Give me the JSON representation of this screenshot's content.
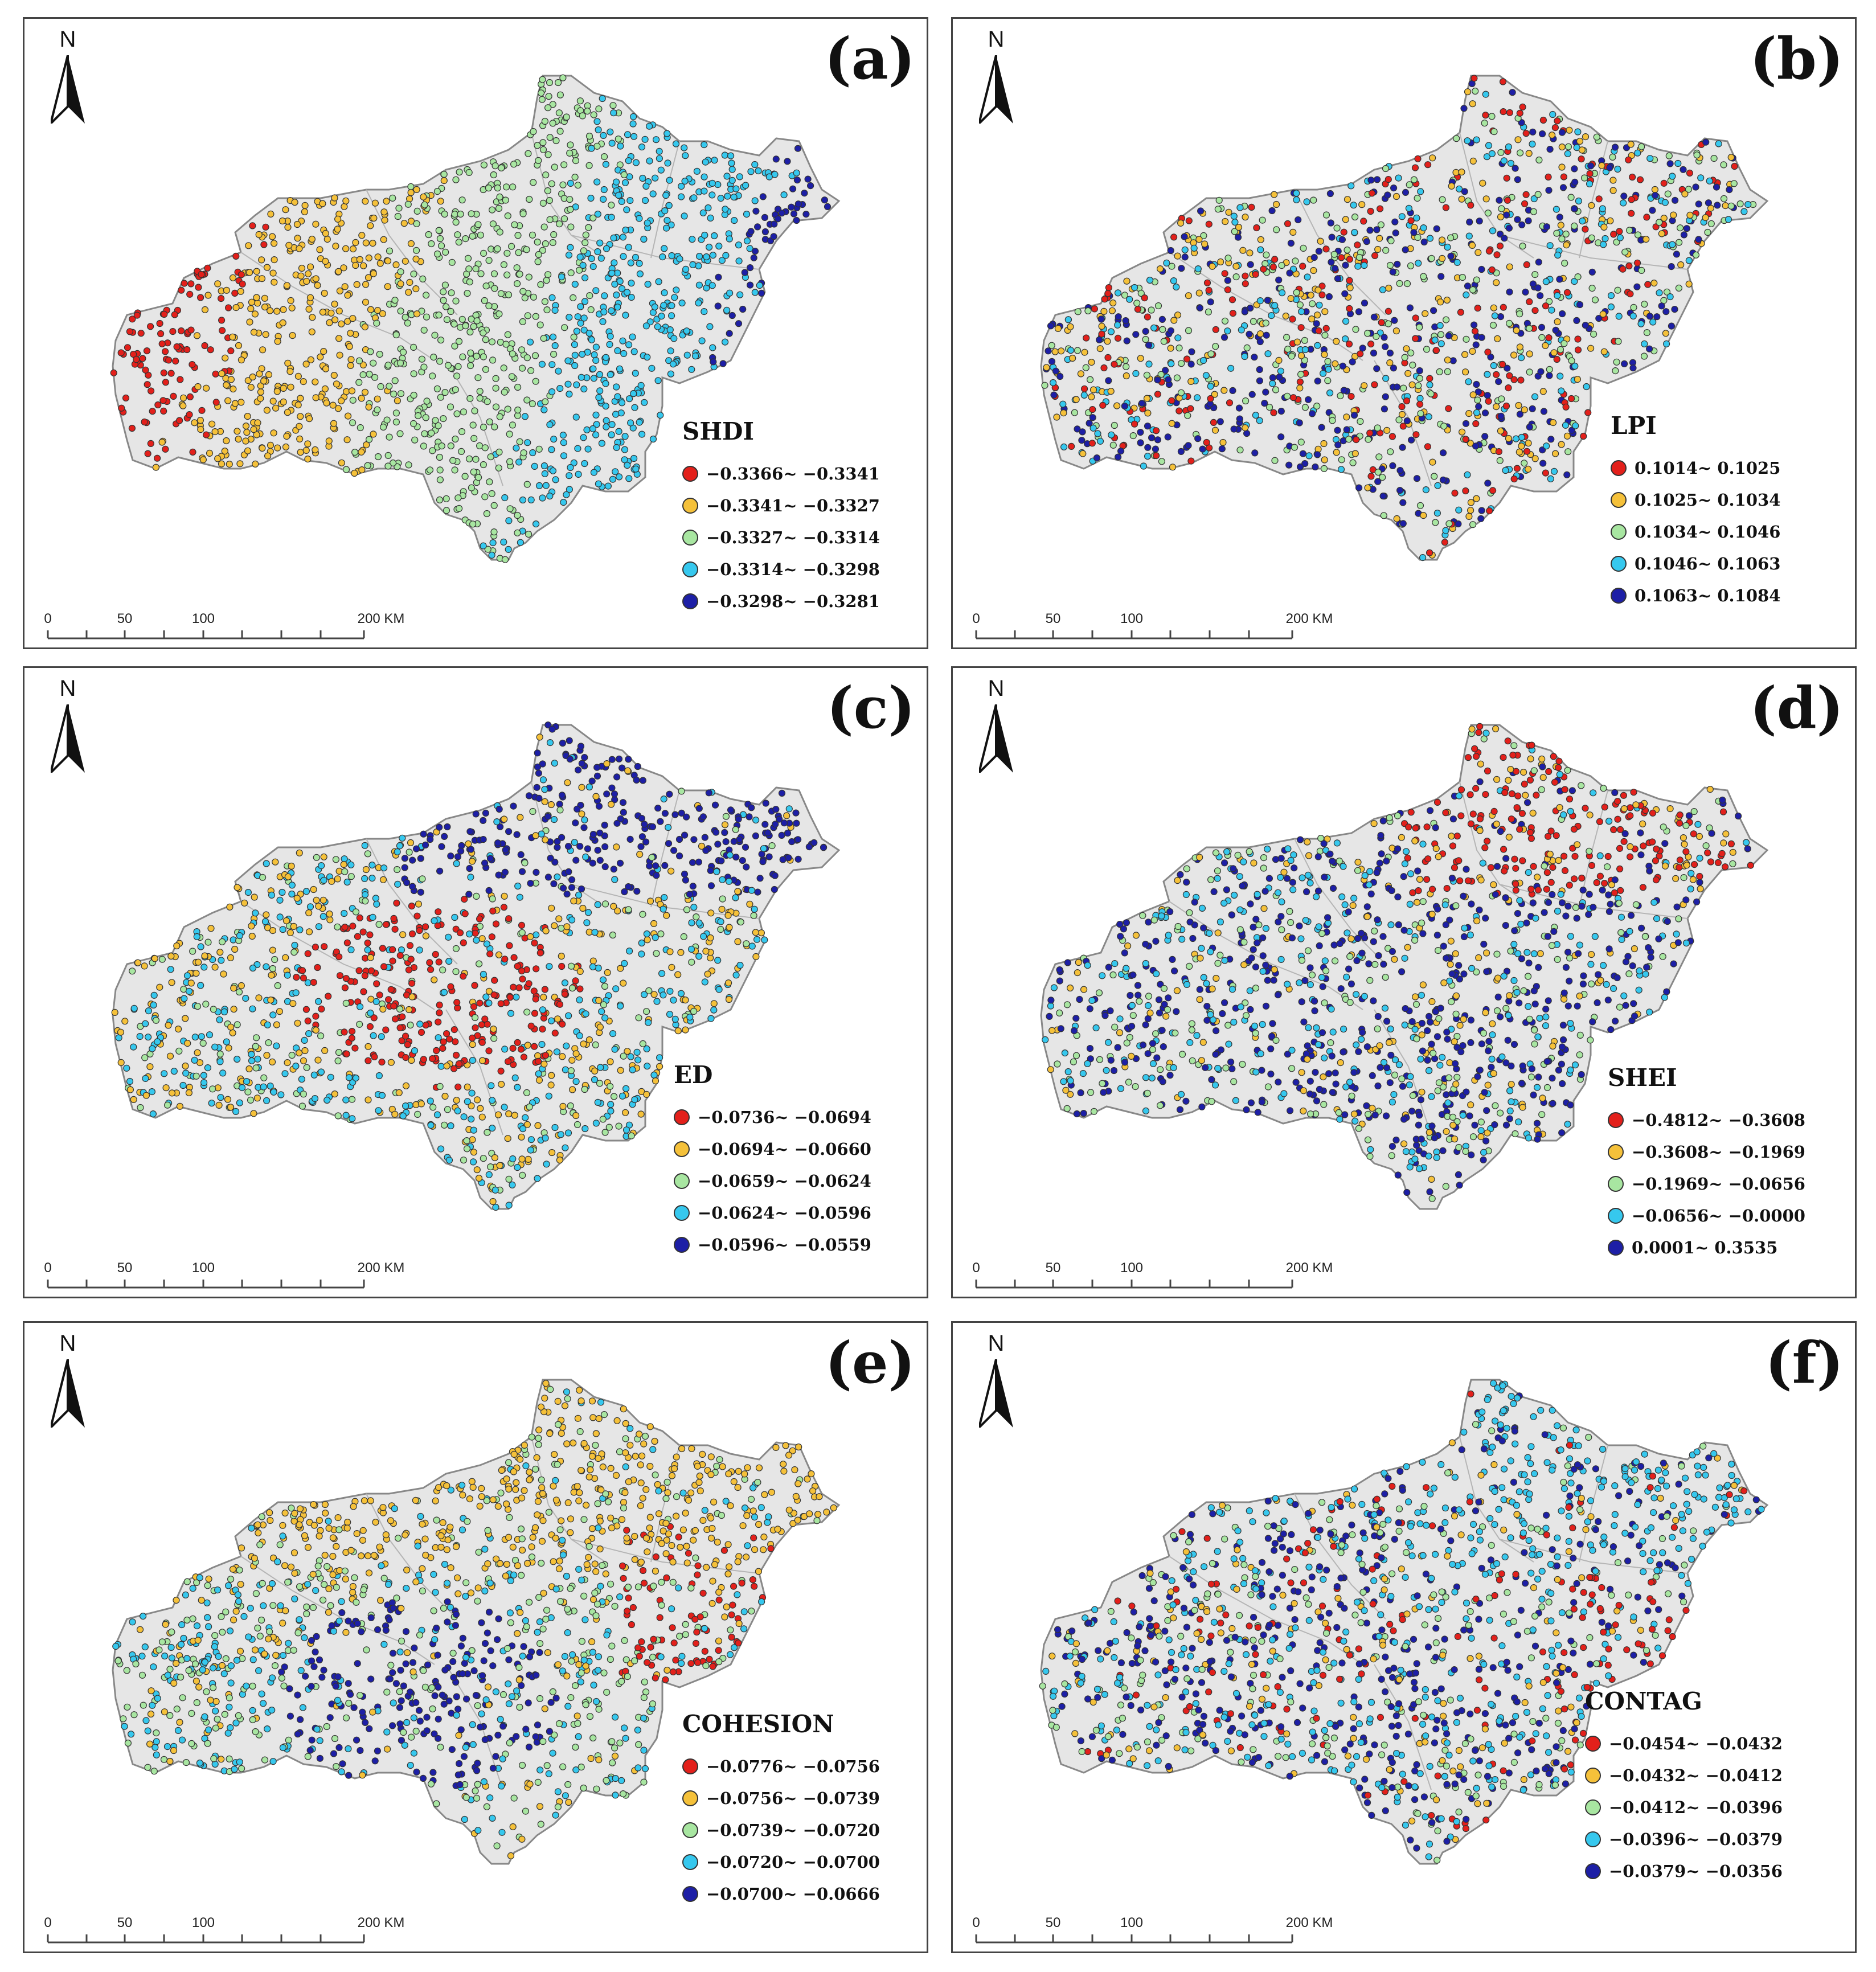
{
  "north_label": "N",
  "scale": {
    "ticks": [
      "0",
      "50",
      "100",
      "200 KM"
    ]
  },
  "palette": [
    "#e3201b",
    "#f5c13a",
    "#a8e6a1",
    "#36c8ee",
    "#1d1fa6"
  ],
  "panels": [
    {
      "label": "(a)",
      "legend_title": "SHDI",
      "classes": [
        "−0.3366~ −0.3341",
        "−0.3341~ −0.3327",
        "−0.3327~ −0.3314",
        "−0.3314~ −0.3298",
        "−0.3298~ −0.3281"
      ],
      "pattern": "west-east"
    },
    {
      "label": "(b)",
      "legend_title": "LPI",
      "classes": [
        "0.1014~ 0.1025",
        "0.1025~ 0.1034",
        "0.1034~ 0.1046",
        "0.1046~ 0.1063",
        "0.1063~ 0.1084"
      ],
      "pattern": "mixed-south-blue"
    },
    {
      "label": "(c)",
      "legend_title": "ED",
      "classes": [
        "−0.0736~ −0.0694",
        "−0.0694~ −0.0660",
        "−0.0659~ −0.0624",
        "−0.0624~ −0.0596",
        "−0.0596~ −0.0559"
      ],
      "pattern": "center-red-north-blue"
    },
    {
      "label": "(d)",
      "legend_title": "SHEI",
      "classes": [
        "−0.4812~ −0.3608",
        "−0.3608~ −0.1969",
        "−0.1969~ −0.0656",
        "−0.0656~ −0.0000",
        "0.0001~ 0.3535"
      ],
      "pattern": "north-red-rest-mixed"
    },
    {
      "label": "(e)",
      "legend_title": "COHESION",
      "classes": [
        "−0.0776~ −0.0756",
        "−0.0756~ −0.0739",
        "−0.0739~ −0.0720",
        "−0.0720~ −0.0700",
        "−0.0700~ −0.0666"
      ],
      "pattern": "north-orange-center-blue"
    },
    {
      "label": "(f)",
      "legend_title": "CONTAG",
      "classes": [
        "−0.0454~ −0.0432",
        "−0.0432~ −0.0412",
        "−0.0412~ −0.0396",
        "−0.0396~ −0.0379",
        "−0.0379~ −0.0356"
      ],
      "pattern": "mixed-cyan-blue"
    }
  ]
}
